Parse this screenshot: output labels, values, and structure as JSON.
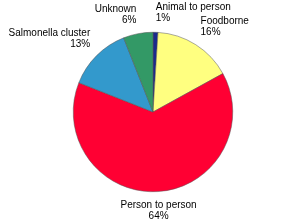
{
  "chart_data": {
    "type": "pie",
    "categories": [
      "Animal to person",
      "Foodborne",
      "Person to person",
      "Salmonella cluster",
      "Unknown"
    ],
    "values": [
      1,
      16,
      64,
      13,
      6
    ],
    "value_labels": [
      "1%",
      "16%",
      "64%",
      "13%",
      "6%"
    ],
    "colors": [
      "#1a2a8c",
      "#ffff80",
      "#ff0033",
      "#3399cc",
      "#339966"
    ],
    "data_labels": true
  }
}
